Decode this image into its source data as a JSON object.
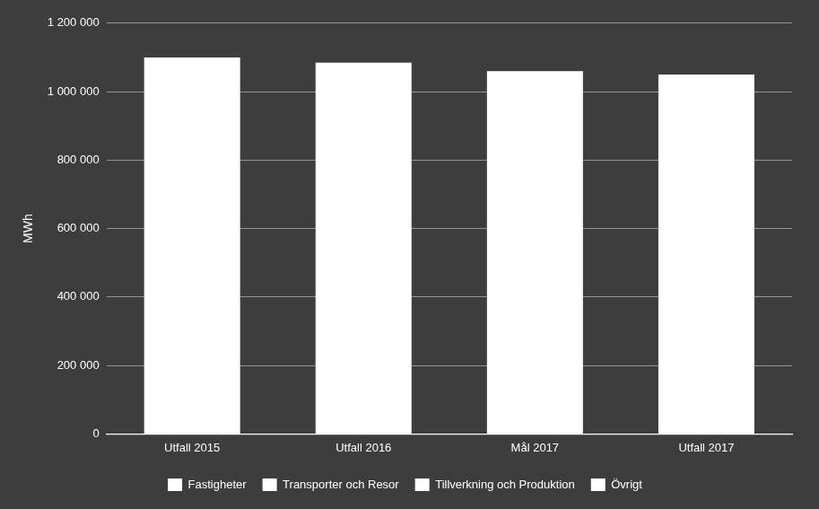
{
  "chart_data": {
    "type": "bar",
    "categories": [
      "Utfall 2015",
      "Utfall 2016",
      "Mål 2017",
      "Utfall 2017"
    ],
    "values": [
      1100000,
      1085000,
      1060000,
      1050000
    ],
    "color": "#ffffff",
    "y_label": "MWh",
    "ylim": [
      0,
      1200000
    ],
    "yticks": [
      0,
      {
        "value": 200000,
        "label": "200 000"
      },
      {
        "value": 400000,
        "label": "400 000"
      },
      {
        "value": 600000,
        "label": "600 000"
      },
      {
        "value": 800000,
        "label": "800 000"
      },
      {
        "value": 1000000,
        "label": "1 000 000"
      },
      {
        "value": 1200000,
        "label": "1 200 000"
      }
    ],
    "grid": true,
    "legend": "bottom",
    "legend_items": [
      {
        "name": "Fastigheter",
        "color": "#ffffff"
      },
      {
        "name": "Transporter och Resor",
        "color": "#ffffff"
      },
      {
        "name": "Tillverkning och Produktion",
        "color": "#ffffff"
      },
      {
        "name": "Övrigt",
        "color": "#ffffff"
      }
    ]
  }
}
